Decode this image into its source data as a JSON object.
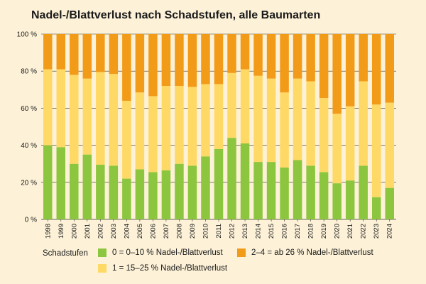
{
  "chart_data": {
    "type": "bar",
    "stacked": true,
    "title": "Nadel-/Blattverlust nach Schadstufen, alle Baumarten",
    "categories": [
      "1998",
      "1999",
      "2000",
      "2001",
      "2002",
      "2003",
      "2004",
      "2005",
      "2006",
      "2007",
      "2008",
      "2009",
      "2010",
      "2011",
      "2012",
      "2013",
      "2014",
      "2015",
      "2016",
      "2017",
      "2018",
      "2019",
      "2020",
      "2021",
      "2022",
      "2023",
      "2024"
    ],
    "y_ticks": [
      "0 %",
      "20 %",
      "40 %",
      "60 %",
      "80 %",
      "100 %"
    ],
    "ylim": [
      0,
      100
    ],
    "grid": true,
    "legend_placement": "bottom",
    "legend_title": "Schadstufen",
    "series": [
      {
        "name": "0 = 0–10 % Nadel-/Blattverlust",
        "color": "#8cc63f",
        "values": [
          40,
          39,
          30,
          35,
          29.5,
          29,
          22,
          27,
          25.5,
          26.5,
          30,
          29,
          34,
          38,
          44,
          41,
          31,
          31,
          28,
          32,
          29,
          25.5,
          19.5,
          21,
          29,
          12,
          17
        ]
      },
      {
        "name": "1 = 15–25 % Nadel-/Blattverlust",
        "color": "#ffd966",
        "values": [
          41,
          42,
          48,
          41,
          50,
          49.5,
          42,
          41.5,
          41,
          45.5,
          42,
          42.5,
          39,
          35,
          35,
          40,
          46.5,
          45,
          40.5,
          44,
          45.5,
          40,
          37.5,
          40,
          45.5,
          50,
          46
        ]
      },
      {
        "name": "2–4 = ab 26 % Nadel-/Blattverlust",
        "color": "#f29b18",
        "values": [
          19,
          19,
          22,
          24,
          20.5,
          21.5,
          36,
          31.5,
          33.5,
          28,
          28,
          28.5,
          27,
          27,
          21,
          19,
          22.5,
          24,
          31.5,
          24,
          25.5,
          34.5,
          43,
          39,
          25.5,
          38,
          37
        ]
      }
    ]
  }
}
